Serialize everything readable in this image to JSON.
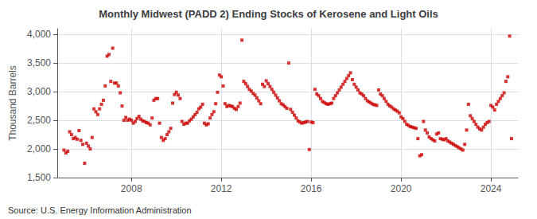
{
  "chart_data": {
    "type": "scatter",
    "title": "Monthly Midwest (PADD 2) Ending Stocks of Kerosene and Light Oils",
    "ylabel": "Thousand Barrels",
    "annotation": "Source: U.S. Energy Information Administration",
    "color": "#cc0000",
    "marker": "square",
    "grid": true,
    "xlim": [
      2004.7,
      2025.2
    ],
    "xticks": [
      2008,
      2012,
      2016,
      2020,
      2024
    ],
    "ylim": [
      1500,
      4100
    ],
    "yticks": [
      {
        "value": 1500,
        "label": "1,500"
      },
      {
        "value": 2000,
        "label": "2,000"
      },
      {
        "value": 2500,
        "label": "2,500"
      },
      {
        "value": 3000,
        "label": "3,000"
      },
      {
        "value": 3500,
        "label": "3,500"
      },
      {
        "value": 4000,
        "label": "4,000"
      }
    ],
    "x": [
      2005.0,
      2005.083,
      2005.167,
      2005.25,
      2005.333,
      2005.417,
      2005.5,
      2005.583,
      2005.667,
      2005.75,
      2005.833,
      2005.917,
      2006.0,
      2006.083,
      2006.167,
      2006.25,
      2006.333,
      2006.417,
      2006.5,
      2006.583,
      2006.667,
      2006.75,
      2006.833,
      2006.917,
      2007.0,
      2007.083,
      2007.167,
      2007.25,
      2007.333,
      2007.417,
      2007.5,
      2007.583,
      2007.667,
      2007.75,
      2007.833,
      2007.917,
      2008.0,
      2008.083,
      2008.167,
      2008.25,
      2008.333,
      2008.417,
      2008.5,
      2008.583,
      2008.667,
      2008.75,
      2008.833,
      2008.917,
      2009.0,
      2009.083,
      2009.167,
      2009.25,
      2009.333,
      2009.417,
      2009.5,
      2009.583,
      2009.667,
      2009.75,
      2009.833,
      2009.917,
      2010.0,
      2010.083,
      2010.167,
      2010.25,
      2010.333,
      2010.417,
      2010.5,
      2010.583,
      2010.667,
      2010.75,
      2010.833,
      2010.917,
      2011.0,
      2011.083,
      2011.167,
      2011.25,
      2011.333,
      2011.417,
      2011.5,
      2011.583,
      2011.667,
      2011.75,
      2011.833,
      2011.917,
      2012.0,
      2012.083,
      2012.167,
      2012.25,
      2012.333,
      2012.417,
      2012.5,
      2012.583,
      2012.667,
      2012.75,
      2012.833,
      2012.917,
      2013.0,
      2013.083,
      2013.167,
      2013.25,
      2013.333,
      2013.417,
      2013.5,
      2013.583,
      2013.667,
      2013.75,
      2013.833,
      2013.917,
      2014.0,
      2014.083,
      2014.167,
      2014.25,
      2014.333,
      2014.417,
      2014.5,
      2014.583,
      2014.667,
      2014.75,
      2014.833,
      2014.917,
      2015.0,
      2015.083,
      2015.167,
      2015.25,
      2015.333,
      2015.417,
      2015.5,
      2015.583,
      2015.667,
      2015.75,
      2015.833,
      2015.917,
      2016.0,
      2016.083,
      2016.167,
      2016.25,
      2016.333,
      2016.417,
      2016.5,
      2016.583,
      2016.667,
      2016.75,
      2016.833,
      2016.917,
      2017.0,
      2017.083,
      2017.167,
      2017.25,
      2017.333,
      2017.417,
      2017.5,
      2017.583,
      2017.667,
      2017.75,
      2017.833,
      2017.917,
      2018.0,
      2018.083,
      2018.167,
      2018.25,
      2018.333,
      2018.417,
      2018.5,
      2018.583,
      2018.667,
      2018.75,
      2018.833,
      2018.917,
      2019.0,
      2019.083,
      2019.167,
      2019.25,
      2019.333,
      2019.417,
      2019.5,
      2019.583,
      2019.667,
      2019.75,
      2019.833,
      2019.917,
      2020.0,
      2020.083,
      2020.167,
      2020.25,
      2020.333,
      2020.417,
      2020.5,
      2020.583,
      2020.667,
      2020.75,
      2020.833,
      2020.917,
      2021.0,
      2021.083,
      2021.167,
      2021.25,
      2021.333,
      2021.417,
      2021.5,
      2021.583,
      2021.667,
      2021.75,
      2021.833,
      2021.917,
      2022.0,
      2022.083,
      2022.167,
      2022.25,
      2022.333,
      2022.417,
      2022.5,
      2022.583,
      2022.667,
      2022.75,
      2022.833,
      2022.917,
      2023.0,
      2023.083,
      2023.167,
      2023.25,
      2023.333,
      2023.417,
      2023.5,
      2023.583,
      2023.667,
      2023.75,
      2023.833,
      2023.917,
      2024.0,
      2024.083,
      2024.167,
      2024.25,
      2024.333,
      2024.417,
      2024.5,
      2024.583,
      2024.667,
      2024.75,
      2024.833,
      2024.917
    ],
    "values": [
      1980,
      1930,
      1960,
      2300,
      2250,
      2180,
      2200,
      2170,
      2320,
      2150,
      2080,
      1750,
      2100,
      2050,
      2000,
      2200,
      2700,
      2650,
      2600,
      2700,
      2780,
      2850,
      3100,
      3620,
      3650,
      3180,
      3760,
      3150,
      3150,
      3100,
      2980,
      2750,
      2500,
      2550,
      2500,
      2520,
      2500,
      2450,
      2480,
      2530,
      2570,
      2520,
      2490,
      2480,
      2460,
      2450,
      2420,
      2540,
      2850,
      2880,
      2880,
      2450,
      2200,
      2150,
      2180,
      2250,
      2300,
      2360,
      2800,
      2950,
      2990,
      2940,
      2880,
      2480,
      2430,
      2450,
      2450,
      2490,
      2520,
      2560,
      2600,
      2640,
      2700,
      2730,
      2780,
      2450,
      2420,
      2440,
      2540,
      2600,
      2650,
      2790,
      2990,
      3290,
      3260,
      3100,
      2790,
      2740,
      2760,
      2750,
      2740,
      2710,
      2690,
      2740,
      2800,
      3900,
      3180,
      3140,
      3090,
      3040,
      3010,
      2970,
      2940,
      2890,
      2840,
      2790,
      3130,
      3090,
      3190,
      3140,
      3090,
      3040,
      2990,
      2940,
      2890,
      2840,
      2790,
      2770,
      2740,
      2710,
      3500,
      2690,
      2640,
      2590,
      2540,
      2490,
      2470,
      2450,
      2460,
      2470,
      2480,
      1990,
      2470,
      2460,
      3040,
      2960,
      2930,
      2880,
      2830,
      2810,
      2790,
      2780,
      2790,
      2800,
      2880,
      2930,
      2980,
      3030,
      3080,
      3130,
      3180,
      3230,
      3280,
      3330,
      3210,
      3130,
      3080,
      3030,
      2980,
      2960,
      2930,
      2880,
      2840,
      2820,
      2800,
      2780,
      2770,
      2760,
      3030,
      2960,
      2930,
      2880,
      2830,
      2780,
      2750,
      2730,
      2700,
      2680,
      2660,
      2630,
      2560,
      2530,
      2480,
      2430,
      2410,
      2390,
      2380,
      2370,
      2360,
      2180,
      1880,
      1900,
      2480,
      2330,
      2280,
      2210,
      2180,
      2160,
      2140,
      2260,
      2280,
      2180,
      2170,
      2160,
      2180,
      2140,
      2120,
      2100,
      2080,
      2060,
      2040,
      2020,
      2000,
      1980,
      2080,
      2330,
      2780,
      2580,
      2530,
      2480,
      2430,
      2380,
      2350,
      2330,
      2380,
      2430,
      2460,
      2480,
      2760,
      2730,
      2680,
      2780,
      2830,
      2880,
      2930,
      2980,
      3180,
      3260,
      3970,
      2180
    ]
  }
}
